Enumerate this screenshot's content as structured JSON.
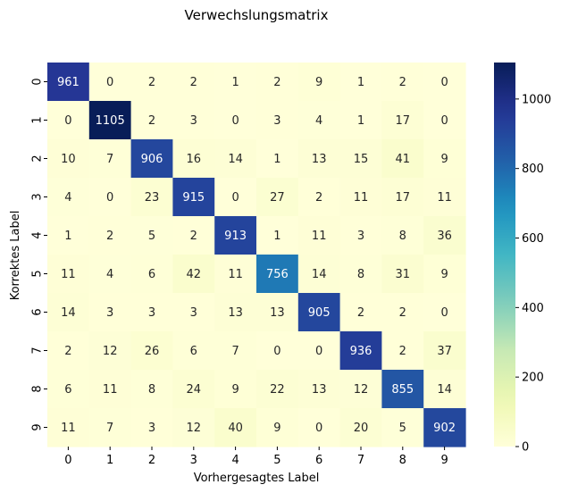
{
  "chart_data": {
    "type": "heatmap",
    "title": "Verwechslungsmatrix",
    "xlabel": "Vorhergesagtes Label",
    "ylabel": "Korrektes Label",
    "x_categories": [
      "0",
      "1",
      "2",
      "3",
      "4",
      "5",
      "6",
      "7",
      "8",
      "9"
    ],
    "y_categories": [
      "0",
      "1",
      "2",
      "3",
      "4",
      "5",
      "6",
      "7",
      "8",
      "9"
    ],
    "values": [
      [
        961,
        0,
        2,
        2,
        1,
        2,
        9,
        1,
        2,
        0
      ],
      [
        0,
        1105,
        2,
        3,
        0,
        3,
        4,
        1,
        17,
        0
      ],
      [
        10,
        7,
        906,
        16,
        14,
        1,
        13,
        15,
        41,
        9
      ],
      [
        4,
        0,
        23,
        915,
        0,
        27,
        2,
        11,
        17,
        11
      ],
      [
        1,
        2,
        5,
        2,
        913,
        1,
        11,
        3,
        8,
        36
      ],
      [
        11,
        4,
        6,
        42,
        11,
        756,
        14,
        8,
        31,
        9
      ],
      [
        14,
        3,
        3,
        3,
        13,
        13,
        905,
        2,
        2,
        0
      ],
      [
        2,
        12,
        26,
        6,
        7,
        0,
        0,
        936,
        2,
        37
      ],
      [
        6,
        11,
        8,
        24,
        9,
        22,
        13,
        12,
        855,
        14
      ],
      [
        11,
        7,
        3,
        12,
        40,
        9,
        0,
        20,
        5,
        902
      ]
    ],
    "colormap": "YlGnBu",
    "colorbar": {
      "vmin": 0,
      "vmax": 1105,
      "ticks": [
        0,
        200,
        400,
        600,
        800,
        1000
      ]
    },
    "annotations": true
  }
}
